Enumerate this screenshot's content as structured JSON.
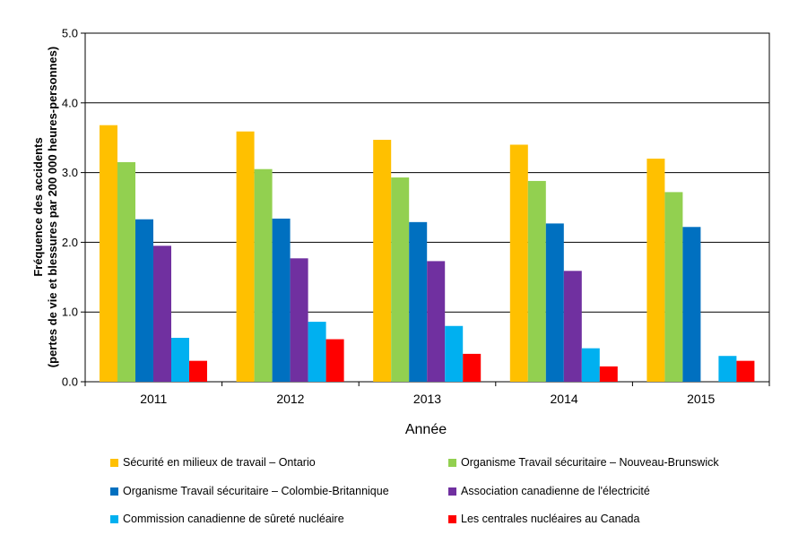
{
  "chart_data": {
    "type": "bar",
    "categories": [
      "2011",
      "2012",
      "2013",
      "2014",
      "2015"
    ],
    "xlabel": "Année",
    "ylabel_line1": "Fréquence des accidents",
    "ylabel_line2": "(pertes de vie et blessures  par 200 000 heures-personnes)",
    "ylim": [
      0,
      5
    ],
    "yticks": [
      "0.0",
      "1.0",
      "2.0",
      "3.0",
      "4.0",
      "5.0"
    ],
    "grid": true,
    "legend_position": "bottom",
    "series": [
      {
        "name": "Sécurité en milieux de travail – Ontario",
        "color": "#FFC000",
        "values": [
          3.68,
          3.59,
          3.47,
          3.4,
          3.2
        ]
      },
      {
        "name": "Organisme  Travail  sécuritaire – Nouveau-Brunswick",
        "color": "#92D050",
        "values": [
          3.15,
          3.05,
          2.93,
          2.88,
          2.72
        ]
      },
      {
        "name": "Organisme  Travail  sécuritaire – Colombie-Britannique",
        "color": "#0070C0",
        "values": [
          2.33,
          2.34,
          2.29,
          2.27,
          2.22
        ]
      },
      {
        "name": "Association canadienne de l'électricité",
        "color": "#7030A0",
        "values": [
          1.95,
          1.77,
          1.73,
          1.59,
          null
        ]
      },
      {
        "name": "Commission canadienne de sûreté nucléaire",
        "color": "#00B0F0",
        "values": [
          0.63,
          0.86,
          0.8,
          0.48,
          0.37
        ]
      },
      {
        "name": "Les centrales nucléaires au Canada",
        "color": "#FF0000",
        "values": [
          0.3,
          0.61,
          0.4,
          0.22,
          0.3
        ]
      }
    ]
  }
}
